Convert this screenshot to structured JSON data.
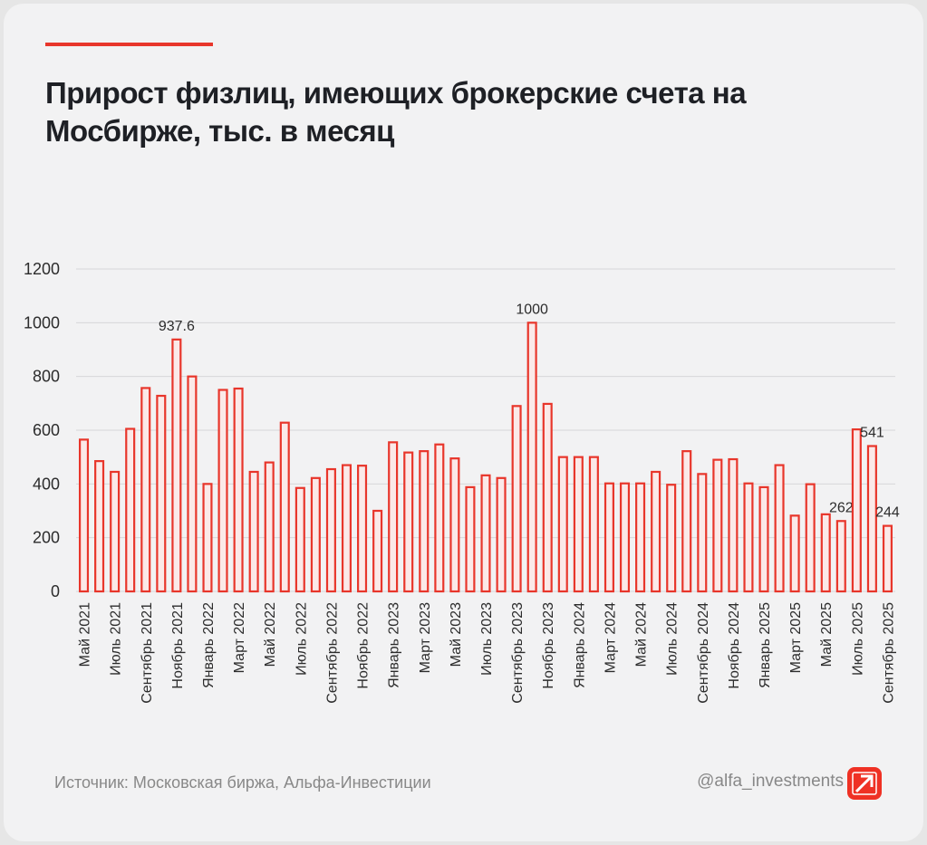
{
  "chart_data": {
    "type": "bar",
    "title": "Прирост физлиц, имеющих брокерские счета на Мосбирже, тыс. в месяц",
    "categories": [
      "Май 2021",
      null,
      "Июль 2021",
      null,
      "Сентябрь 2021",
      null,
      "Ноябрь 2021",
      null,
      "Январь 2022",
      null,
      "Март 2022",
      null,
      "Май 2022",
      null,
      "Июль 2022",
      null,
      "Сентябрь 2022",
      null,
      "Ноябрь 2022",
      null,
      "Январь 2023",
      null,
      "Март 2023",
      null,
      "Май 2023",
      null,
      "Июль 2023",
      null,
      "Сентябрь 2023",
      null,
      "Ноябрь 2023",
      null,
      "Январь 2024",
      null,
      "Март 2024",
      null,
      "Май 2024",
      null,
      "Июль 2024",
      null,
      "Сентябрь 2024",
      null,
      "Ноябрь 2024",
      null,
      "Январь 2025",
      null,
      "Март 2025",
      null,
      "Май 2025",
      null,
      "Июль 2025",
      null,
      "Сентябрь 2025"
    ],
    "values": [
      565,
      485,
      445,
      605,
      757,
      728,
      937.6,
      800,
      400,
      750,
      755,
      445,
      480,
      628,
      385,
      422,
      455,
      470,
      468,
      300,
      555,
      517,
      522,
      547,
      495,
      388,
      432,
      422,
      690,
      1000,
      698,
      500,
      500,
      500,
      402,
      402,
      402,
      445,
      397,
      522,
      437,
      490,
      492,
      402,
      388,
      470,
      282,
      399,
      287,
      262,
      603,
      541,
      244
    ],
    "value_labels": [
      null,
      null,
      null,
      null,
      null,
      null,
      "937.6",
      null,
      null,
      null,
      null,
      null,
      null,
      null,
      null,
      null,
      null,
      null,
      null,
      null,
      null,
      null,
      null,
      null,
      null,
      null,
      null,
      null,
      null,
      "1000",
      null,
      null,
      null,
      null,
      null,
      null,
      null,
      null,
      null,
      null,
      null,
      null,
      null,
      null,
      null,
      null,
      null,
      null,
      null,
      "262",
      null,
      "541",
      "244"
    ],
    "color": "#e8362b",
    "ylim": [
      0,
      1200
    ],
    "yticks": [
      0,
      200,
      400,
      600,
      800,
      1000,
      1200
    ],
    "grid": true
  },
  "source": "Источник: Московская биржа, Альфа-Инвестиции",
  "handle": "@alfa_investments"
}
